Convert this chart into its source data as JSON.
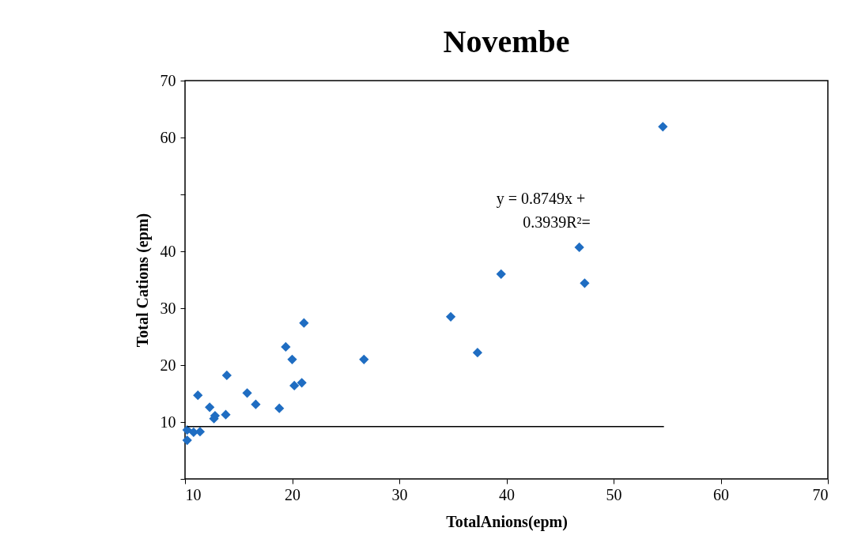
{
  "chart_data": {
    "type": "scatter",
    "title": "Novembe",
    "xlabel": "TotalAnions(epm)",
    "ylabel": "Total Cations (epm)",
    "xlim": [
      10,
      70
    ],
    "xticks": [
      10,
      20,
      30,
      40,
      50,
      60,
      70
    ],
    "ylim": [
      0,
      70
    ],
    "yticks": [
      {
        "value": 0,
        "label": null
      },
      10,
      20,
      30,
      40,
      {
        "value": 50,
        "label": null
      },
      60,
      70
    ],
    "grid": false,
    "annotations": [
      "y = 0.8749x +",
      "0.3939R²="
    ],
    "series": [
      {
        "marker": "diamond",
        "color": "#1f6dc2",
        "x": [
          54.6,
          46.8,
          47.3,
          39.5,
          34.8,
          37.3,
          26.7,
          21.1,
          19.4,
          20.0,
          20.9,
          20.2,
          18.8,
          16.6,
          15.8,
          13.9,
          13.8,
          12.7,
          12.8,
          12.3,
          11.2,
          10.2,
          10.2,
          10.8,
          11.4
        ],
        "values": [
          61.9,
          40.7,
          34.4,
          36.0,
          28.5,
          22.2,
          21.0,
          27.4,
          23.2,
          21.0,
          16.9,
          16.4,
          12.4,
          13.1,
          15.1,
          18.2,
          11.3,
          10.6,
          11.1,
          12.6,
          14.7,
          8.6,
          6.8,
          8.2,
          8.3
        ]
      },
      {
        "type": "line",
        "color": "#000000",
        "x": [
          10.2,
          54.7
        ],
        "values": [
          9.2,
          9.2
        ]
      }
    ]
  }
}
